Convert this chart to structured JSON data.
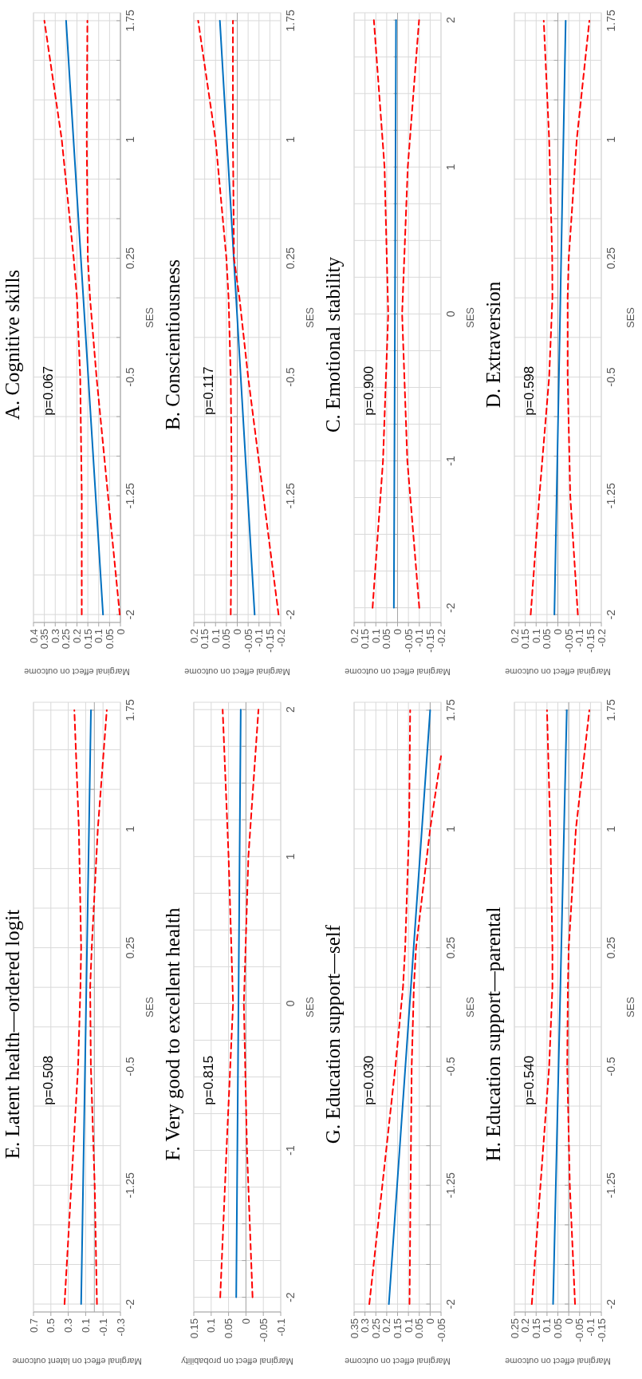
{
  "chart_data": [
    {
      "type": "line",
      "title": "A. Cognitive skills",
      "xlabel": "Marginal effect on outcome",
      "ylabel": "SES",
      "annotations": [
        "p=0.067"
      ],
      "ylim": [
        -2.05,
        1.8
      ],
      "yticks": [
        -2,
        {
          "value": -1.75,
          "label": null
        },
        {
          "value": -1.5,
          "label": null
        },
        -1.25,
        {
          "value": -1,
          "label": null
        },
        {
          "value": -0.75,
          "label": null
        },
        -0.5,
        {
          "value": -0.25,
          "label": null
        },
        {
          "value": 0,
          "label": null
        },
        0.25,
        {
          "value": 0.5,
          "label": null
        },
        {
          "value": 0.75,
          "label": null
        },
        1,
        {
          "value": 1.25,
          "label": null
        },
        {
          "value": 1.5,
          "label": null
        },
        1.75
      ],
      "xlim": [
        0.4,
        0
      ],
      "xticks": [
        0,
        0.05,
        0.1,
        0.15,
        0.2,
        0.25,
        0.3,
        0.35,
        0.4
      ],
      "grid": true,
      "series": [
        {
          "color": "#0070c0",
          "line_style": "solid",
          "values": [
            -2,
            1.75
          ],
          "x": [
            0.08,
            0.25
          ]
        },
        {
          "color": "#ff0000",
          "line_style": "dashed",
          "values": [
            -2,
            -1.25,
            -0.5,
            0,
            0.25,
            1,
            1.75
          ],
          "x": [
            0.178,
            0.178,
            0.185,
            0.2,
            0.215,
            0.27,
            0.35
          ]
        },
        {
          "color": "#ff0000",
          "line_style": "dashed",
          "values": [
            -2,
            -1.25,
            -0.5,
            0,
            0.25,
            1,
            1.75
          ],
          "x": [
            0.003,
            0.057,
            0.11,
            0.14,
            0.15,
            0.155,
            0.152
          ]
        }
      ]
    },
    {
      "type": "line",
      "title": "B. Conscientiousness",
      "xlabel": "Marginal effect on outcome",
      "ylabel": "SES",
      "annotations": [
        "p=0.117"
      ],
      "ylim": [
        -2.05,
        1.8
      ],
      "yticks": [
        -2,
        {
          "value": -1.75,
          "label": null
        },
        {
          "value": -1.5,
          "label": null
        },
        -1.25,
        {
          "value": -1,
          "label": null
        },
        {
          "value": -0.75,
          "label": null
        },
        -0.5,
        {
          "value": -0.25,
          "label": null
        },
        {
          "value": 0,
          "label": null
        },
        0.25,
        {
          "value": 0.5,
          "label": null
        },
        {
          "value": 0.75,
          "label": null
        },
        1,
        {
          "value": 1.25,
          "label": null
        },
        {
          "value": 1.5,
          "label": null
        },
        1.75
      ],
      "xlim": [
        0.2,
        -0.2
      ],
      "xticks": [
        -0.2,
        -0.15,
        -0.1,
        -0.05,
        0,
        0.05,
        0.1,
        0.15,
        0.2
      ],
      "grid": true,
      "series": [
        {
          "color": "#0070c0",
          "line_style": "solid",
          "values": [
            -2,
            1.75
          ],
          "x": [
            -0.08,
            0.08
          ]
        },
        {
          "color": "#ff0000",
          "line_style": "dashed",
          "values": [
            -2,
            -1.25,
            -0.5,
            0,
            0.25,
            1,
            1.75
          ],
          "x": [
            0.03,
            0.025,
            0.03,
            0.04,
            0.05,
            0.1,
            0.18
          ]
        },
        {
          "color": "#ff0000",
          "line_style": "dashed",
          "values": [
            -2,
            -1.25,
            -0.5,
            0,
            0.25,
            1,
            1.75
          ],
          "x": [
            -0.19,
            -0.12,
            -0.05,
            -0.01,
            0.015,
            0.02,
            0.02
          ]
        }
      ]
    },
    {
      "type": "line",
      "title": "C. Emotional stability",
      "xlabel": "Marginal effect on outcome",
      "ylabel": "SES",
      "annotations": [
        "p=0.900"
      ],
      "ylim": [
        -2.1,
        2.05
      ],
      "yticks": [
        -2,
        {
          "value": -1.75,
          "label": null
        },
        {
          "value": -1.5,
          "label": null
        },
        {
          "value": -1.25,
          "label": null
        },
        -1,
        {
          "value": -0.75,
          "label": null
        },
        {
          "value": -0.5,
          "label": null
        },
        {
          "value": -0.25,
          "label": null
        },
        0,
        {
          "value": 0.25,
          "label": null
        },
        {
          "value": 0.5,
          "label": null
        },
        {
          "value": 0.75,
          "label": null
        },
        1,
        {
          "value": 1.25,
          "label": null
        },
        {
          "value": 1.5,
          "label": null
        },
        {
          "value": 1.75,
          "label": null
        },
        2
      ],
      "xlim": [
        0.2,
        -0.2
      ],
      "xticks": [
        -0.2,
        -0.15,
        -0.1,
        -0.05,
        0,
        0.05,
        0.1,
        0.15,
        0.2
      ],
      "grid": true,
      "series": [
        {
          "color": "#0070c0",
          "line_style": "solid",
          "values": [
            -2,
            2
          ],
          "x": [
            0.017,
            0.007
          ]
        },
        {
          "color": "#ff0000",
          "line_style": "dashed",
          "values": [
            -2,
            -1,
            0,
            1,
            2
          ],
          "x": [
            0.115,
            0.067,
            0.043,
            0.06,
            0.109
          ]
        },
        {
          "color": "#ff0000",
          "line_style": "dashed",
          "values": [
            -2,
            -1,
            0,
            1,
            2
          ],
          "x": [
            -0.1,
            -0.045,
            -0.021,
            -0.047,
            -0.099
          ]
        }
      ]
    },
    {
      "type": "line",
      "title": "D. Extraversion",
      "xlabel": "Marginal effect on outcome",
      "ylabel": "SES",
      "annotations": [
        "p=0.598"
      ],
      "ylim": [
        -2.05,
        1.8
      ],
      "yticks": [
        -2,
        {
          "value": -1.75,
          "label": null
        },
        {
          "value": -1.5,
          "label": null
        },
        -1.25,
        {
          "value": -1,
          "label": null
        },
        {
          "value": -0.75,
          "label": null
        },
        -0.5,
        {
          "value": -0.25,
          "label": null
        },
        {
          "value": 0,
          "label": null
        },
        0.25,
        {
          "value": 0.5,
          "label": null
        },
        {
          "value": 0.75,
          "label": null
        },
        1,
        {
          "value": 1.25,
          "label": null
        },
        {
          "value": 1.5,
          "label": null
        },
        1.75
      ],
      "xlim": [
        0.2,
        -0.2
      ],
      "xticks": [
        -0.2,
        -0.15,
        -0.1,
        -0.05,
        0,
        0.05,
        0.1,
        0.15,
        0.2
      ],
      "grid": true,
      "series": [
        {
          "color": "#0070c0",
          "line_style": "solid",
          "values": [
            -2,
            1.75
          ],
          "x": [
            0.016,
            -0.036
          ]
        },
        {
          "color": "#ff0000",
          "line_style": "dashed",
          "values": [
            -2,
            -1.25,
            -0.5,
            0,
            0.25,
            1,
            1.75
          ],
          "x": [
            0.125,
            0.085,
            0.04,
            0.025,
            0.026,
            0.04,
            0.065
          ]
        },
        {
          "color": "#ff0000",
          "line_style": "dashed",
          "values": [
            -2,
            -1.25,
            -0.5,
            0,
            0.25,
            1,
            1.75
          ],
          "x": [
            -0.092,
            -0.057,
            -0.045,
            -0.045,
            -0.05,
            -0.087,
            -0.145
          ]
        }
      ]
    },
    {
      "type": "line",
      "title": "E. Latent health—ordered logit",
      "xlabel": "Marginal effect on latent outcome",
      "ylabel": "SES",
      "annotations": [
        "p=0.508"
      ],
      "ylim": [
        -2.05,
        1.8
      ],
      "yticks": [
        -2,
        {
          "value": -1.75,
          "label": null
        },
        {
          "value": -1.5,
          "label": null
        },
        -1.25,
        {
          "value": -1,
          "label": null
        },
        {
          "value": -0.75,
          "label": null
        },
        -0.5,
        {
          "value": -0.25,
          "label": null
        },
        {
          "value": 0,
          "label": null
        },
        0.25,
        {
          "value": 0.5,
          "label": null
        },
        {
          "value": 0.75,
          "label": null
        },
        1,
        {
          "value": 1.25,
          "label": null
        },
        {
          "value": 1.5,
          "label": null
        },
        1.75
      ],
      "xlim": [
        0.7,
        -0.3
      ],
      "xticks": [
        -0.3,
        -0.1,
        0.1,
        0.3,
        0.5,
        0.7
      ],
      "grid": true,
      "series": [
        {
          "color": "#0070c0",
          "line_style": "solid",
          "values": [
            -2,
            1.75
          ],
          "x": [
            0.152,
            0.039
          ]
        },
        {
          "color": "#ff0000",
          "line_style": "dashed",
          "values": [
            -2,
            -1.25,
            -0.5,
            0,
            0.25,
            1,
            1.75
          ],
          "x": [
            0.343,
            0.265,
            0.187,
            0.16,
            0.152,
            0.178,
            0.23
          ]
        },
        {
          "color": "#ff0000",
          "line_style": "dashed",
          "values": [
            -2,
            -1.25,
            -0.5,
            0,
            0.25,
            1,
            1.75
          ],
          "x": [
            -0.03,
            -0.004,
            0.04,
            0.048,
            0.03,
            -0.04,
            -0.143
          ]
        }
      ]
    },
    {
      "type": "line",
      "title": "F. Very good to excellent health",
      "xlabel": "Marginal effect on probability",
      "ylabel": "SES",
      "annotations": [
        "p=0.815"
      ],
      "ylim": [
        -2.1,
        2.05
      ],
      "yticks": [
        -2,
        {
          "value": -1.75,
          "label": null
        },
        {
          "value": -1.5,
          "label": null
        },
        {
          "value": -1.25,
          "label": null
        },
        -1,
        {
          "value": -0.75,
          "label": null
        },
        {
          "value": -0.5,
          "label": null
        },
        {
          "value": -0.25,
          "label": null
        },
        0,
        {
          "value": 0.25,
          "label": null
        },
        {
          "value": 0.5,
          "label": null
        },
        {
          "value": 0.75,
          "label": null
        },
        1,
        {
          "value": 1.25,
          "label": null
        },
        {
          "value": 1.5,
          "label": null
        },
        {
          "value": 1.75,
          "label": null
        },
        2
      ],
      "xlim": [
        0.15,
        -0.1
      ],
      "xticks": [
        -0.1,
        -0.05,
        0,
        0.05,
        0.1,
        0.15
      ],
      "grid": true,
      "series": [
        {
          "color": "#0070c0",
          "line_style": "solid",
          "values": [
            -2,
            2
          ],
          "x": [
            0.028,
            0.015
          ]
        },
        {
          "color": "#ff0000",
          "line_style": "dashed",
          "values": [
            -2,
            -1,
            0,
            1,
            2
          ],
          "x": [
            0.074,
            0.056,
            0.037,
            0.05,
            0.067
          ]
        },
        {
          "color": "#ff0000",
          "line_style": "dashed",
          "values": [
            -2,
            -1,
            0,
            1,
            2
          ],
          "x": [
            -0.019,
            -0.003,
            0.006,
            -0.007,
            -0.036
          ]
        }
      ]
    },
    {
      "type": "line",
      "title": "G. Education support—self",
      "xlabel": "Marginal effect on outcome",
      "ylabel": "SES",
      "annotations": [
        "p=0.030"
      ],
      "ylim": [
        -2.05,
        1.8
      ],
      "yticks": [
        -2,
        {
          "value": -1.75,
          "label": null
        },
        {
          "value": -1.5,
          "label": null
        },
        -1.25,
        {
          "value": -1,
          "label": null
        },
        {
          "value": -0.75,
          "label": null
        },
        -0.5,
        {
          "value": -0.25,
          "label": null
        },
        {
          "value": 0,
          "label": null
        },
        0.25,
        {
          "value": 0.5,
          "label": null
        },
        {
          "value": 0.75,
          "label": null
        },
        1,
        {
          "value": 1.25,
          "label": null
        },
        {
          "value": 1.5,
          "label": null
        },
        1.75
      ],
      "xlim": [
        0.35,
        -0.05
      ],
      "xticks": [
        -0.05,
        0,
        0.05,
        0.1,
        0.15,
        0.2,
        0.25,
        0.3,
        0.35
      ],
      "grid": true,
      "series": [
        {
          "color": "#0070c0",
          "line_style": "solid",
          "values": [
            -2,
            1.75
          ],
          "x": [
            0.19,
            0
          ]
        },
        {
          "color": "#ff0000",
          "line_style": "dashed",
          "values": [
            -2,
            -1.25,
            -0.5,
            0,
            0.25,
            1,
            1.75
          ],
          "x": [
            0.28,
            0.22,
            0.16,
            0.125,
            0.115,
            0.097,
            0.092
          ]
        },
        {
          "color": "#ff0000",
          "line_style": "dashed",
          "values": [
            -2,
            -1.25,
            -0.5,
            0,
            0.25,
            1,
            1.46
          ],
          "x": [
            0.095,
            0.09,
            0.085,
            0.075,
            0.065,
            0,
            -0.05
          ]
        }
      ]
    },
    {
      "type": "line",
      "title": "H. Education support—parental",
      "xlabel": "Marginal effect on outcome",
      "ylabel": "SES",
      "annotations": [
        "p=0.540"
      ],
      "ylim": [
        -2.05,
        1.8
      ],
      "yticks": [
        -2,
        {
          "value": -1.75,
          "label": null
        },
        {
          "value": -1.5,
          "label": null
        },
        -1.25,
        {
          "value": -1,
          "label": null
        },
        {
          "value": -0.75,
          "label": null
        },
        -0.5,
        {
          "value": -0.25,
          "label": null
        },
        {
          "value": 0,
          "label": null
        },
        0.25,
        {
          "value": 0.5,
          "label": null
        },
        {
          "value": 0.75,
          "label": null
        },
        1,
        {
          "value": 1.25,
          "label": null
        },
        {
          "value": 1.5,
          "label": null
        },
        1.75
      ],
      "xlim": [
        0.25,
        -0.15
      ],
      "xticks": [
        -0.15,
        -0.1,
        -0.05,
        0,
        0.05,
        0.1,
        0.15,
        0.2,
        0.25
      ],
      "grid": true,
      "series": [
        {
          "color": "#0070c0",
          "line_style": "solid",
          "values": [
            -2,
            1.75
          ],
          "x": [
            0.072,
            0.009
          ]
        },
        {
          "color": "#ff0000",
          "line_style": "dashed",
          "values": [
            -2,
            -1.25,
            -0.5,
            0,
            0.25,
            1,
            1.75
          ],
          "x": [
            0.17,
            0.13,
            0.09,
            0.075,
            0.075,
            0.085,
            0.1
          ]
        },
        {
          "color": "#ff0000",
          "line_style": "dashed",
          "values": [
            -2,
            -1.25,
            -0.5,
            0,
            0.25,
            1,
            1.75
          ],
          "x": [
            -0.029,
            -0.005,
            0.007,
            0.004,
            0,
            -0.033,
            -0.095
          ]
        }
      ]
    }
  ]
}
